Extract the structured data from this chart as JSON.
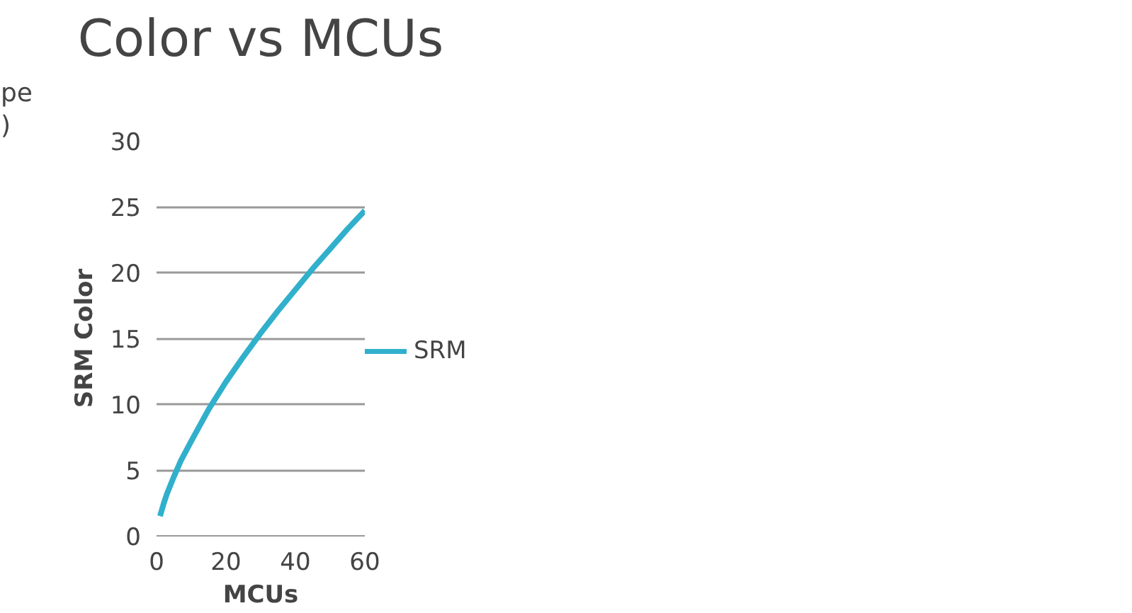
{
  "chart_data": {
    "type": "line",
    "title": "Color vs MCUs",
    "xlabel": "MCUs",
    "ylabel": "SRM Color",
    "annotations": [
      "pe",
      ")"
    ],
    "x": [
      1,
      2,
      3,
      5,
      7,
      10,
      15,
      20,
      25,
      30,
      35,
      40,
      45,
      50,
      55,
      60
    ],
    "series": [
      {
        "name": "SRM",
        "color": "#31b0cc",
        "values": [
          1.5,
          2.4,
          3.2,
          4.5,
          5.7,
          7.2,
          9.6,
          11.7,
          13.6,
          15.4,
          17.1,
          18.7,
          20.3,
          21.8,
          23.3,
          24.7
        ]
      }
    ],
    "xlim": [
      0,
      60
    ],
    "xticks": [
      0,
      20,
      40,
      60
    ],
    "ylim": [
      0,
      30
    ],
    "yticks": [
      0,
      5,
      10,
      15,
      20,
      25,
      30
    ],
    "grid": "y",
    "legend": "right",
    "marker": "none",
    "line_style": "solid"
  }
}
